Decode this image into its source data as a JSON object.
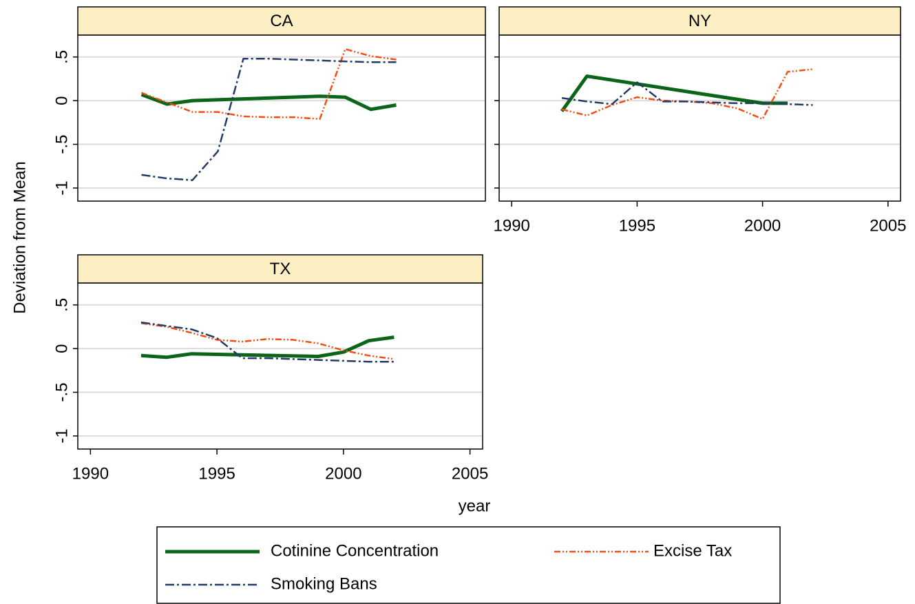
{
  "shared": {
    "ylabel": "Deviation from Mean",
    "xlabel": "year"
  },
  "chart_data": [
    {
      "type": "line",
      "title": "CA",
      "xlim": [
        1989.5,
        2005.5
      ],
      "ylim": [
        -1.15,
        0.75
      ],
      "yticks": [
        {
          "value": 0.5,
          "label": ".5"
        },
        0,
        {
          "value": -0.5,
          "label": "-.5"
        },
        -1
      ],
      "grid": true,
      "series": [
        {
          "name": "Cotinine Concentration",
          "color": "#0b6418",
          "style": "solid",
          "x": [
            1992,
            1993,
            1994,
            1999,
            2000,
            2001,
            2002
          ],
          "values": [
            0.07,
            -0.04,
            0.0,
            0.05,
            0.04,
            -0.1,
            -0.05
          ]
        },
        {
          "name": "Excise Tax",
          "color": "#f24d12",
          "style": "dash-dot-dot",
          "x": [
            1992,
            1993,
            1994,
            1995,
            1996,
            1997,
            1998,
            1999,
            2000,
            2001,
            2002
          ],
          "values": [
            0.09,
            -0.02,
            -0.13,
            -0.13,
            -0.18,
            -0.19,
            -0.19,
            -0.21,
            0.59,
            0.51,
            0.47
          ]
        },
        {
          "name": "Smoking Bans",
          "color": "#223a66",
          "style": "dash-dot",
          "x": [
            1992,
            1993,
            1994,
            1995,
            1996,
            1997,
            1998,
            1999,
            2000,
            2001,
            2002
          ],
          "values": [
            -0.85,
            -0.89,
            -0.91,
            -0.58,
            0.48,
            0.48,
            0.47,
            0.46,
            0.45,
            0.44,
            0.44
          ]
        }
      ]
    },
    {
      "type": "line",
      "title": "NY",
      "xlim": [
        1989.5,
        2005.5
      ],
      "ylim": [
        -1.15,
        0.75
      ],
      "xticks": [
        1990,
        1995,
        2000,
        2005
      ],
      "yticks": [
        0.5,
        0,
        -0.5,
        -1
      ],
      "show_yticklabels": false,
      "grid": true,
      "series": [
        {
          "name": "Cotinine Concentration",
          "color": "#0b6418",
          "style": "solid",
          "x": [
            1992,
            1993,
            2000,
            2001
          ],
          "values": [
            -0.12,
            0.28,
            -0.03,
            -0.03
          ]
        },
        {
          "name": "Excise Tax",
          "color": "#f24d12",
          "style": "dash-dot-dot",
          "x": [
            1992,
            1993,
            1994,
            1995,
            1996,
            1997,
            1998,
            1999,
            2000,
            2001,
            2002
          ],
          "values": [
            -0.1,
            -0.17,
            -0.05,
            0.04,
            0.0,
            -0.01,
            -0.03,
            -0.09,
            -0.21,
            0.33,
            0.36
          ]
        },
        {
          "name": "Smoking Bans",
          "color": "#223a66",
          "style": "dash-dot",
          "x": [
            1992,
            1993,
            1994,
            1995,
            1996,
            1997,
            1998,
            1999,
            2000,
            2001,
            2002
          ],
          "values": [
            0.03,
            -0.01,
            -0.04,
            0.21,
            -0.01,
            -0.01,
            -0.02,
            -0.03,
            -0.03,
            -0.04,
            -0.05
          ]
        }
      ]
    },
    {
      "type": "line",
      "title": "TX",
      "xlim": [
        1989.5,
        2005.5
      ],
      "ylim": [
        -1.15,
        0.75
      ],
      "xticks": [
        1990,
        1995,
        2000,
        2005
      ],
      "yticks": [
        {
          "value": 0.5,
          "label": ".5"
        },
        0,
        {
          "value": -0.5,
          "label": "-.5"
        },
        -1
      ],
      "grid": true,
      "series": [
        {
          "name": "Cotinine Concentration",
          "color": "#0b6418",
          "style": "solid",
          "x": [
            1992,
            1993,
            1994,
            1999,
            2000,
            2001,
            2002
          ],
          "values": [
            -0.08,
            -0.1,
            -0.06,
            -0.09,
            -0.04,
            0.09,
            0.13
          ]
        },
        {
          "name": "Excise Tax",
          "color": "#f24d12",
          "style": "dash-dot-dot",
          "x": [
            1992,
            1993,
            1994,
            1995,
            1996,
            1997,
            1998,
            1999,
            2000,
            2001,
            2002
          ],
          "values": [
            0.29,
            0.25,
            0.18,
            0.1,
            0.08,
            0.11,
            0.1,
            0.06,
            -0.02,
            -0.08,
            -0.12
          ]
        },
        {
          "name": "Smoking Bans",
          "color": "#223a66",
          "style": "dash-dot",
          "x": [
            1992,
            1993,
            1994,
            1995,
            1996,
            1997,
            1998,
            1999,
            2000,
            2001,
            2002
          ],
          "values": [
            0.3,
            0.26,
            0.22,
            0.12,
            -0.11,
            -0.11,
            -0.12,
            -0.13,
            -0.14,
            -0.15,
            -0.15
          ]
        }
      ]
    }
  ]
}
